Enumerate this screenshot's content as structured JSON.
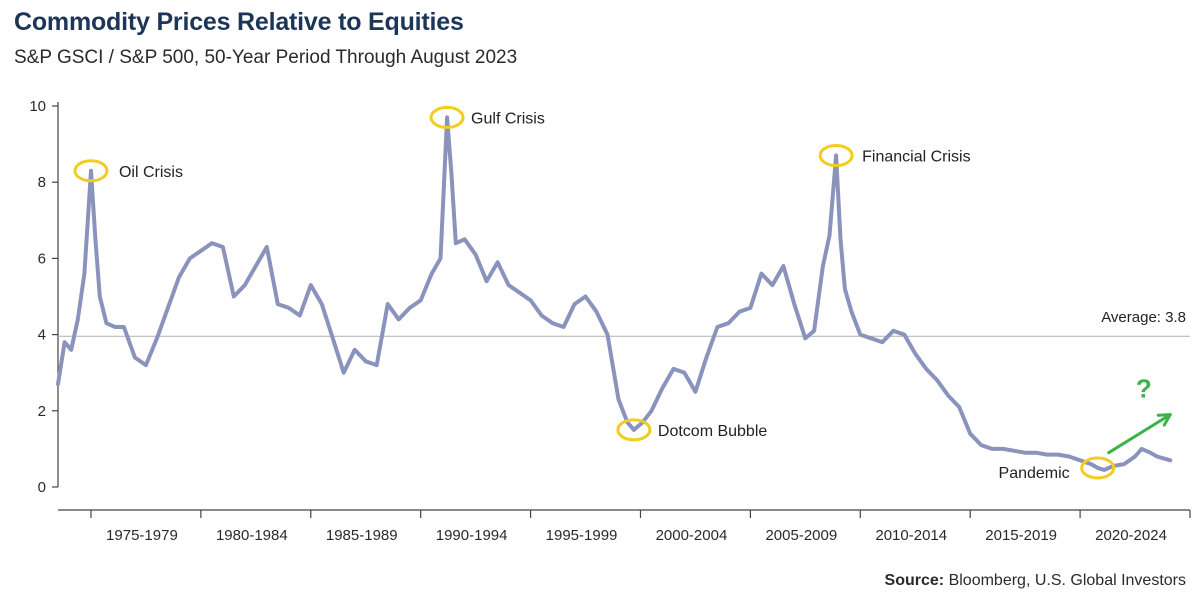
{
  "title": "Commodity Prices Relative to Equities",
  "subtitle": "S&P GSCI / S&P 500, 50-Year Period Through August 2023",
  "source_label": "Source:",
  "source_text": "Bloomberg, U.S. Global Investors",
  "colors": {
    "line": "#8a93bc",
    "highlight": "#f2cc1f",
    "arrow": "#3bb34a",
    "axis": "#444444",
    "average": "#b0b0b0"
  },
  "chart_data": {
    "type": "line",
    "title": "Commodity Prices Relative to Equities",
    "subtitle": "S&P GSCI / S&P 500, 50-Year Period Through August 2023",
    "xlabel": "",
    "ylabel": "",
    "xlim": [
      1973.0,
      2024.5
    ],
    "ylim": [
      0,
      10
    ],
    "yticks": [
      0,
      2,
      4,
      6,
      8,
      10
    ],
    "xtick_labels": [
      "1975-1979",
      "1980-1984",
      "1985-1989",
      "1990-1994",
      "1995-1999",
      "2000-2004",
      "2005-2009",
      "2010-2014",
      "2015-2019",
      "2020-2024"
    ],
    "xtick_positions": [
      1974.5,
      1979.5,
      1984.5,
      1989.5,
      1994.5,
      1999.5,
      2004.5,
      2009.5,
      2014.5,
      2019.5,
      2024.5
    ],
    "grid": false,
    "series": [
      {
        "name": "S&P GSCI / S&P 500",
        "x": [
          1973.0,
          1973.3,
          1973.6,
          1973.9,
          1974.2,
          1974.5,
          1974.7,
          1974.9,
          1975.2,
          1975.6,
          1976.0,
          1976.5,
          1977.0,
          1977.5,
          1978.0,
          1978.5,
          1979.0,
          1979.5,
          1980.0,
          1980.5,
          1981.0,
          1981.5,
          1982.0,
          1982.5,
          1983.0,
          1983.5,
          1984.0,
          1984.5,
          1985.0,
          1985.5,
          1986.0,
          1986.5,
          1987.0,
          1987.5,
          1988.0,
          1988.5,
          1989.0,
          1989.5,
          1990.0,
          1990.4,
          1990.7,
          1990.9,
          1991.1,
          1991.5,
          1992.0,
          1992.5,
          1993.0,
          1993.5,
          1994.0,
          1994.5,
          1995.0,
          1995.5,
          1996.0,
          1996.5,
          1997.0,
          1997.5,
          1998.0,
          1998.5,
          1998.9,
          1999.2,
          1999.6,
          2000.0,
          2000.5,
          2001.0,
          2001.5,
          2002.0,
          2002.5,
          2003.0,
          2003.5,
          2004.0,
          2004.5,
          2005.0,
          2005.5,
          2006.0,
          2006.5,
          2007.0,
          2007.4,
          2007.8,
          2008.1,
          2008.4,
          2008.6,
          2008.8,
          2009.1,
          2009.5,
          2010.0,
          2010.5,
          2011.0,
          2011.5,
          2012.0,
          2012.5,
          2013.0,
          2013.5,
          2014.0,
          2014.5,
          2015.0,
          2015.5,
          2016.0,
          2016.5,
          2017.0,
          2017.5,
          2018.0,
          2018.5,
          2019.0,
          2019.5,
          2020.0,
          2020.3,
          2020.6,
          2021.0,
          2021.5,
          2022.0,
          2022.3,
          2022.7,
          2023.0,
          2023.3,
          2023.6
        ],
        "y": [
          2.7,
          3.8,
          3.6,
          4.4,
          5.6,
          8.3,
          6.5,
          5.0,
          4.3,
          4.2,
          4.2,
          3.4,
          3.2,
          3.9,
          4.7,
          5.5,
          6.0,
          6.2,
          6.4,
          6.3,
          5.0,
          5.3,
          5.8,
          6.3,
          4.8,
          4.7,
          4.5,
          5.3,
          4.8,
          3.9,
          3.0,
          3.6,
          3.3,
          3.2,
          4.8,
          4.4,
          4.7,
          4.9,
          5.6,
          6.0,
          9.7,
          8.2,
          6.4,
          6.5,
          6.1,
          5.4,
          5.9,
          5.3,
          5.1,
          4.9,
          4.5,
          4.3,
          4.2,
          4.8,
          5.0,
          4.6,
          4.0,
          2.3,
          1.7,
          1.5,
          1.7,
          2.0,
          2.6,
          3.1,
          3.0,
          2.5,
          3.4,
          4.2,
          4.3,
          4.6,
          4.7,
          5.6,
          5.3,
          5.8,
          4.8,
          3.9,
          4.1,
          5.8,
          6.6,
          8.7,
          6.5,
          5.2,
          4.6,
          4.0,
          3.9,
          3.8,
          4.1,
          4.0,
          3.5,
          3.1,
          2.8,
          2.4,
          2.1,
          1.4,
          1.1,
          1.0,
          1.0,
          0.95,
          0.9,
          0.9,
          0.85,
          0.85,
          0.8,
          0.7,
          0.6,
          0.5,
          0.45,
          0.55,
          0.6,
          0.8,
          1.0,
          0.9,
          0.8,
          0.75,
          0.7
        ]
      }
    ],
    "reference_line": {
      "value": 3.8,
      "label": "Average: 3.8"
    },
    "annotations": [
      {
        "label": "Oil Crisis",
        "x": 1974.5,
        "y": 8.3
      },
      {
        "label": "Gulf Crisis",
        "x": 1990.7,
        "y": 9.7
      },
      {
        "label": "Dotcom Bubble",
        "x": 1999.2,
        "y": 1.5
      },
      {
        "label": "Financial Crisis",
        "x": 2008.4,
        "y": 8.7
      },
      {
        "label": "Pandemic",
        "x": 2020.3,
        "y": 0.5
      }
    ],
    "question_mark": "?"
  }
}
